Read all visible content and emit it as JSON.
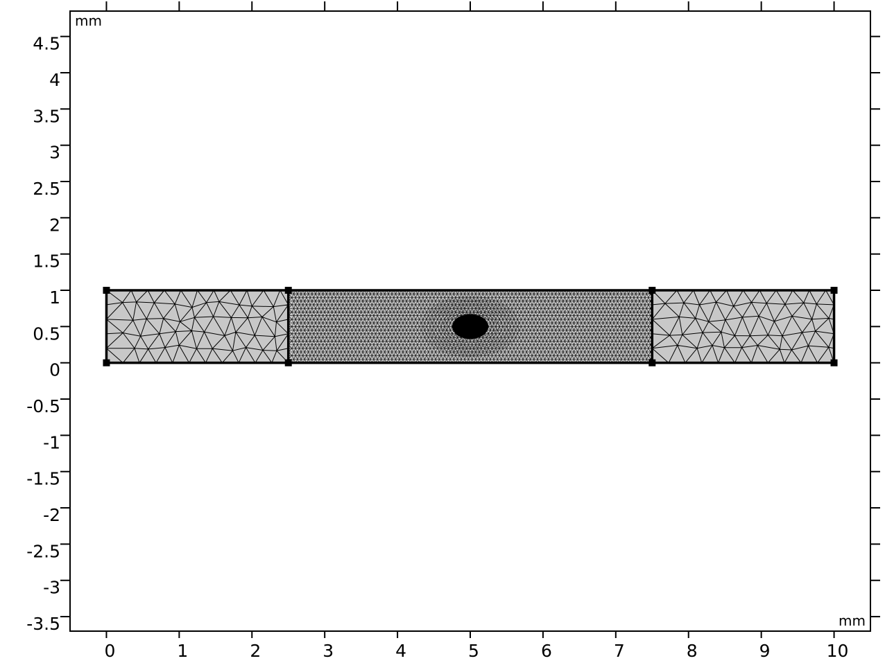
{
  "units": {
    "x": "mm",
    "y": "mm"
  },
  "colors": {
    "domain_fill": "#c8c8c8",
    "mesh_line": "#000000",
    "frame": "#000000",
    "background": "#ffffff"
  },
  "chart_data": {
    "type": "mesh",
    "xlim": [
      -0.5,
      10.5
    ],
    "ylim": [
      -3.7,
      4.85
    ],
    "x_ticks": [
      0,
      1,
      2,
      3,
      4,
      5,
      6,
      7,
      8,
      9,
      10
    ],
    "x_tick_labels": [
      "0",
      "1",
      "2",
      "3",
      "4",
      "5",
      "6",
      "7",
      "8",
      "9",
      "10"
    ],
    "y_ticks": [
      4.5,
      4,
      3.5,
      3,
      2.5,
      2,
      1.5,
      1,
      0.5,
      0,
      -0.5,
      -1,
      -1.5,
      -2,
      -2.5,
      -3,
      -3.5
    ],
    "y_tick_labels": [
      "4.5",
      "4",
      "3.5",
      "3",
      "2.5",
      "2",
      "1.5",
      "1",
      "0.5",
      "0",
      "-0.5",
      "-1",
      "-1.5",
      "-2",
      "-2.5",
      "-3",
      "-3.5"
    ],
    "domains": [
      {
        "x": [
          0,
          2.5
        ],
        "y": [
          0,
          1
        ],
        "mesh": "coarse"
      },
      {
        "x": [
          2.5,
          7.5
        ],
        "y": [
          0,
          1
        ],
        "mesh": "fine",
        "refinement_center": [
          5,
          0.5
        ]
      },
      {
        "x": [
          7.5,
          10
        ],
        "y": [
          0,
          1
        ],
        "mesh": "coarse"
      }
    ],
    "vertices": [
      [
        0,
        0
      ],
      [
        0,
        1
      ],
      [
        2.5,
        0
      ],
      [
        2.5,
        1
      ],
      [
        7.5,
        0
      ],
      [
        7.5,
        1
      ],
      [
        10,
        0
      ],
      [
        10,
        1
      ]
    ]
  }
}
